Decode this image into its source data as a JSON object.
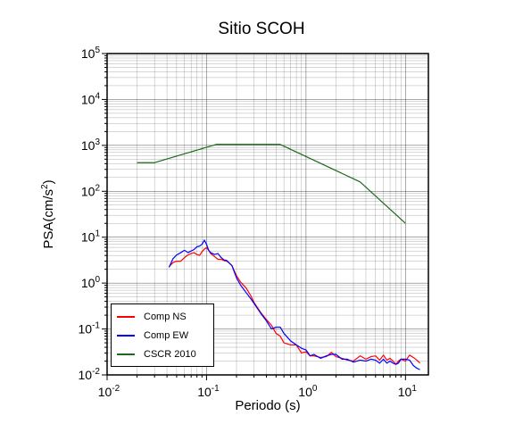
{
  "chart_data": {
    "type": "line",
    "title": "Sitio SCOH",
    "xlabel": "Periodo (s)",
    "ylabel_base": "PSA(cm/s",
    "ylabel_sup": "2",
    "ylabel_tail": ")",
    "x_scale": "log",
    "y_scale": "log",
    "xlim": [
      0.01,
      17
    ],
    "ylim": [
      0.01,
      100000
    ],
    "x_ticks": [
      {
        "value": 0.01,
        "base": "10",
        "exp": "-2"
      },
      {
        "value": 0.1,
        "base": "10",
        "exp": "-1"
      },
      {
        "value": 1,
        "base": "10",
        "exp": "0"
      },
      {
        "value": 10,
        "base": "10",
        "exp": "1"
      }
    ],
    "y_ticks": [
      {
        "value": 0.01,
        "base": "10",
        "exp": "-2"
      },
      {
        "value": 0.1,
        "base": "10",
        "exp": "-1"
      },
      {
        "value": 1,
        "base": "10",
        "exp": "0"
      },
      {
        "value": 10,
        "base": "10",
        "exp": "1"
      },
      {
        "value": 100,
        "base": "10",
        "exp": "2"
      },
      {
        "value": 1000,
        "base": "10",
        "exp": "3"
      },
      {
        "value": 10000,
        "base": "10",
        "exp": "4"
      },
      {
        "value": 100000,
        "base": "10",
        "exp": "5"
      }
    ],
    "grid": true,
    "legend_position": "bottom-left",
    "series": [
      {
        "name": "Comp NS",
        "color": "#ff0000",
        "x": [
          0.042,
          0.046,
          0.05,
          0.055,
          0.06,
          0.065,
          0.07,
          0.075,
          0.08,
          0.085,
          0.09,
          0.095,
          0.1,
          0.105,
          0.11,
          0.12,
          0.13,
          0.14,
          0.15,
          0.16,
          0.17,
          0.18,
          0.2,
          0.22,
          0.25,
          0.28,
          0.3,
          0.35,
          0.4,
          0.45,
          0.5,
          0.55,
          0.6,
          0.7,
          0.8,
          0.9,
          1.0,
          1.1,
          1.2,
          1.4,
          1.6,
          1.8,
          2.0,
          2.3,
          2.6,
          3.0,
          3.5,
          4.0,
          4.5,
          5.0,
          5.5,
          6.0,
          6.5,
          7.0,
          7.5,
          8.0,
          8.5,
          9.0,
          10.0,
          11.0,
          12.0,
          13.0,
          14.0
        ],
        "y": [
          2.3,
          2.8,
          3.0,
          3.0,
          3.6,
          4.1,
          4.4,
          4.6,
          4.2,
          4.0,
          4.8,
          5.5,
          5.9,
          5.2,
          4.4,
          3.8,
          3.3,
          3.3,
          3.1,
          3.0,
          2.7,
          2.4,
          1.45,
          1.05,
          0.78,
          0.52,
          0.38,
          0.23,
          0.16,
          0.12,
          0.08,
          0.07,
          0.05,
          0.045,
          0.045,
          0.03,
          0.032,
          0.026,
          0.026,
          0.024,
          0.025,
          0.031,
          0.025,
          0.023,
          0.021,
          0.02,
          0.026,
          0.022,
          0.025,
          0.026,
          0.021,
          0.027,
          0.021,
          0.023,
          0.02,
          0.017,
          0.02,
          0.022,
          0.02,
          0.027,
          0.024,
          0.021,
          0.018
        ]
      },
      {
        "name": "Comp EW",
        "color": "#0000ff",
        "x": [
          0.042,
          0.046,
          0.05,
          0.055,
          0.06,
          0.065,
          0.07,
          0.075,
          0.08,
          0.085,
          0.09,
          0.095,
          0.1,
          0.105,
          0.11,
          0.12,
          0.13,
          0.14,
          0.15,
          0.16,
          0.17,
          0.18,
          0.2,
          0.22,
          0.25,
          0.28,
          0.3,
          0.35,
          0.4,
          0.45,
          0.5,
          0.55,
          0.6,
          0.7,
          0.8,
          0.9,
          1.0,
          1.1,
          1.2,
          1.4,
          1.6,
          1.8,
          2.0,
          2.3,
          2.6,
          3.0,
          3.5,
          4.0,
          4.5,
          5.0,
          5.5,
          6.0,
          6.5,
          7.0,
          7.5,
          8.0,
          8.5,
          9.0,
          10.0,
          11.0,
          12.0,
          13.0,
          14.0
        ],
        "y": [
          2.2,
          3.4,
          4.1,
          4.6,
          5.2,
          4.6,
          5.0,
          5.4,
          6.2,
          6.4,
          7.0,
          8.6,
          7.0,
          5.2,
          4.6,
          4.2,
          4.4,
          3.6,
          3.2,
          3.1,
          2.7,
          2.4,
          1.3,
          0.9,
          0.62,
          0.45,
          0.36,
          0.22,
          0.15,
          0.1,
          0.11,
          0.11,
          0.08,
          0.055,
          0.045,
          0.038,
          0.035,
          0.026,
          0.028,
          0.023,
          0.026,
          0.028,
          0.028,
          0.022,
          0.022,
          0.019,
          0.021,
          0.02,
          0.022,
          0.021,
          0.018,
          0.022,
          0.018,
          0.02,
          0.018,
          0.017,
          0.018,
          0.022,
          0.022,
          0.021,
          0.016,
          0.014,
          0.013
        ]
      },
      {
        "name": "CSCR 2010",
        "color": "#1a6b1a",
        "x": [
          0.02,
          0.03,
          0.125,
          0.55,
          3.5,
          10.0
        ],
        "y": [
          420,
          420,
          1050,
          1050,
          160,
          20
        ]
      }
    ]
  }
}
